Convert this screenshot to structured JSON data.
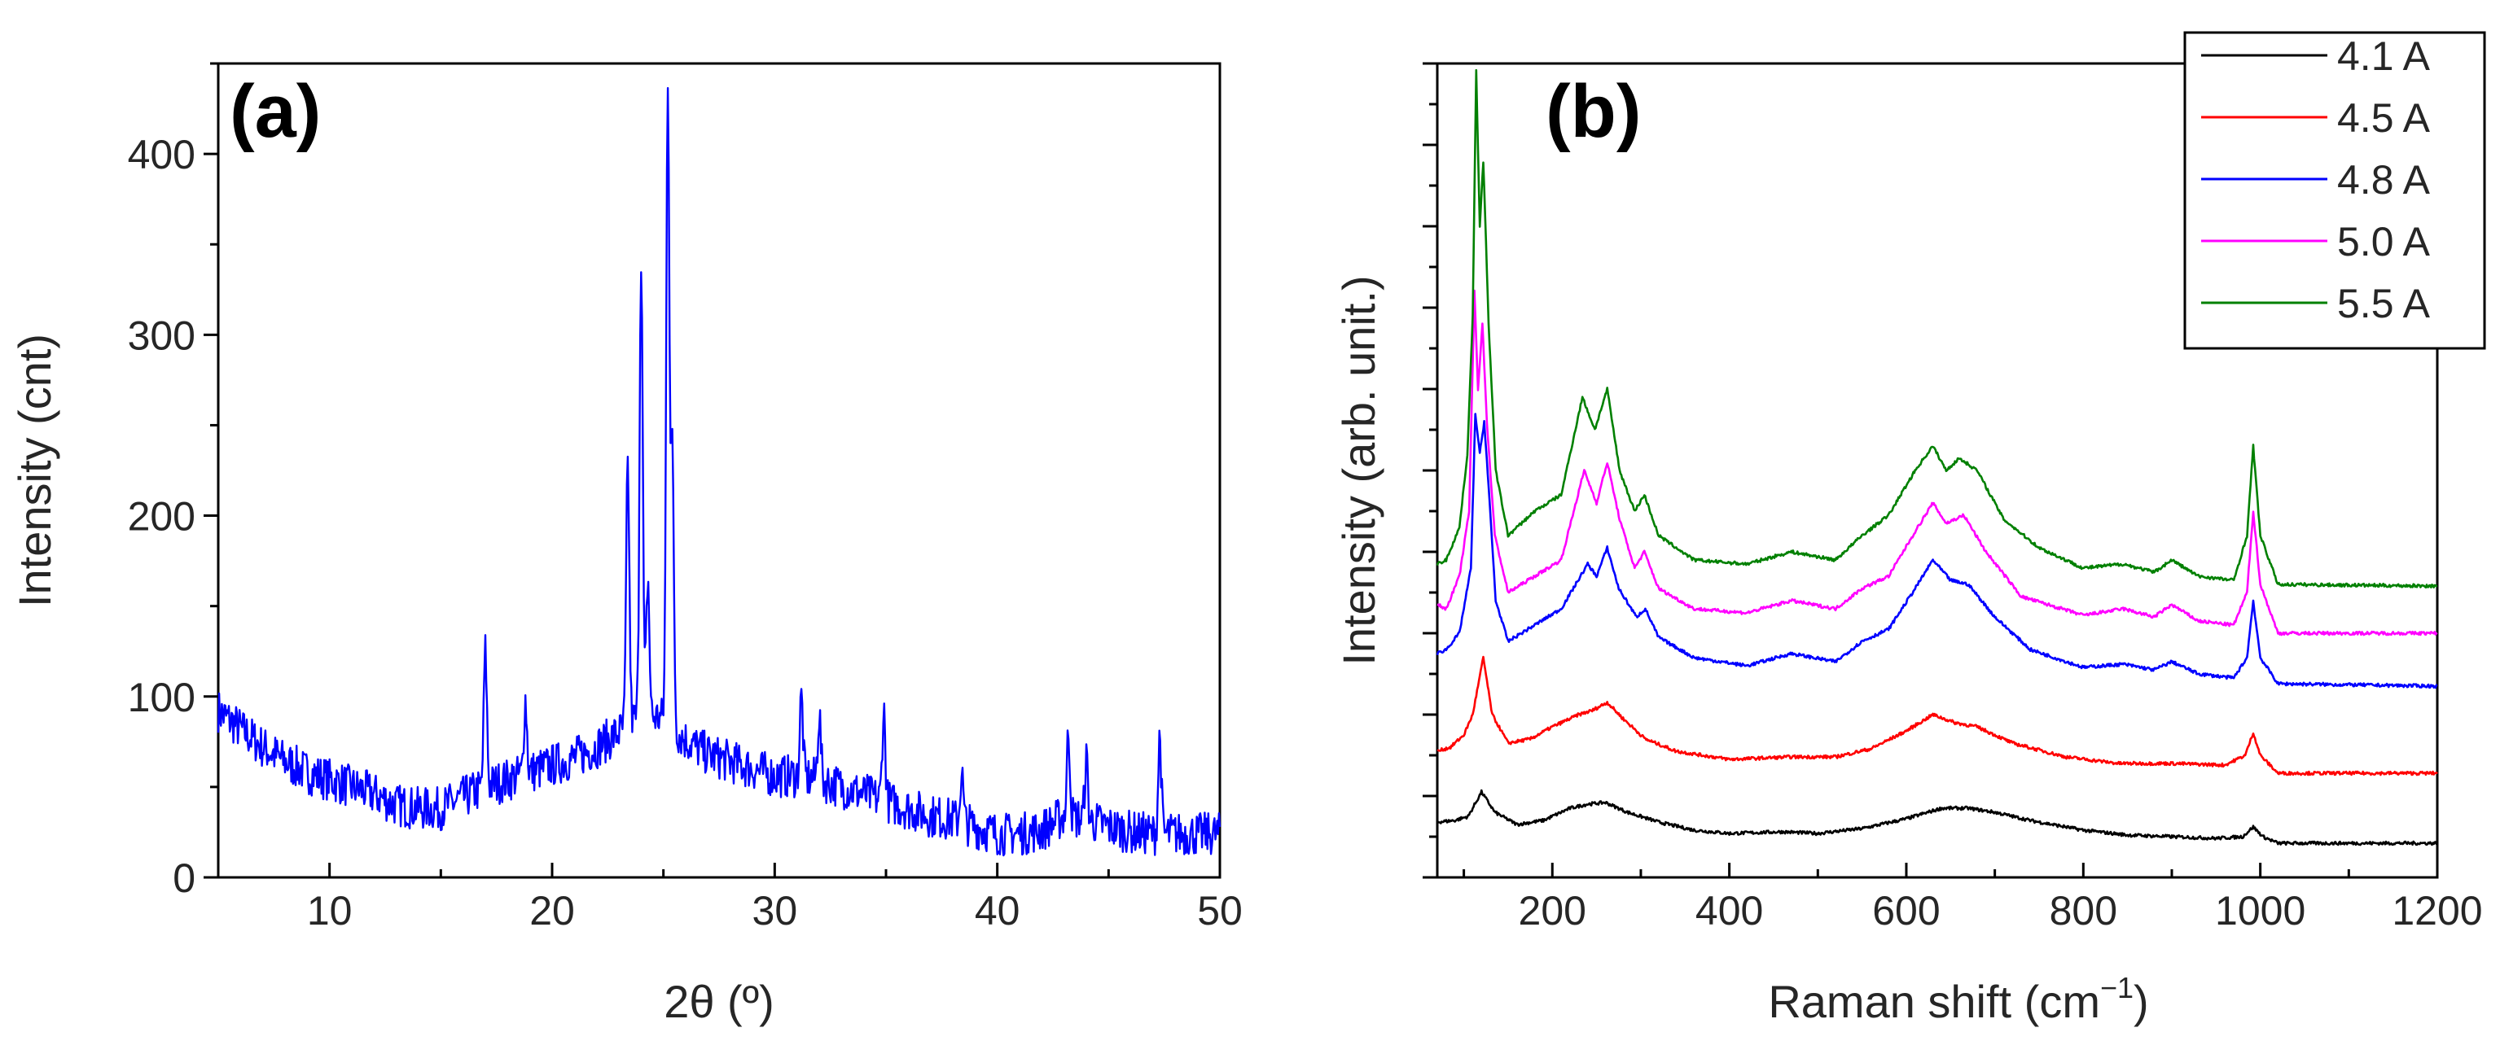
{
  "chart_data": [
    {
      "panel_label": "(a)",
      "type": "line",
      "title": "",
      "xlabel": "2θ (º)",
      "ylabel": "Intensity (cnt)",
      "xlim": [
        5,
        50
      ],
      "ylim": [
        0,
        450
      ],
      "xticks": [
        10,
        20,
        30,
        40,
        50
      ],
      "yticks": [
        0,
        100,
        200,
        300,
        400
      ],
      "grid": false,
      "series": [
        {
          "name": "XRD pattern",
          "color": "#0000ff",
          "baseline": [
            [
              5,
              92
            ],
            [
              6,
              82
            ],
            [
              7,
              72
            ],
            [
              8,
              64
            ],
            [
              9,
              58
            ],
            [
              10,
              54
            ],
            [
              11,
              50
            ],
            [
              12,
              46
            ],
            [
              13,
              40
            ],
            [
              14,
              38
            ],
            [
              15,
              38
            ],
            [
              16,
              44
            ],
            [
              17,
              50
            ],
            [
              18,
              54
            ],
            [
              19,
              58
            ],
            [
              20,
              62
            ],
            [
              21,
              66
            ],
            [
              22,
              72
            ],
            [
              23,
              80
            ],
            [
              24,
              90
            ],
            [
              25,
              88
            ],
            [
              26,
              76
            ],
            [
              27,
              68
            ],
            [
              28,
              64
            ],
            [
              29,
              60
            ],
            [
              30,
              56
            ],
            [
              31,
              56
            ],
            [
              32,
              54
            ],
            [
              33,
              50
            ],
            [
              34,
              46
            ],
            [
              35,
              42
            ],
            [
              36,
              38
            ],
            [
              37,
              34
            ],
            [
              38,
              32
            ],
            [
              39,
              28
            ],
            [
              40,
              24
            ],
            [
              41,
              24
            ],
            [
              42,
              26
            ],
            [
              43,
              34
            ],
            [
              44,
              32
            ],
            [
              45,
              28
            ],
            [
              46,
              25
            ],
            [
              47,
              24
            ],
            [
              48,
              24
            ],
            [
              49,
              24
            ],
            [
              50,
              24
            ]
          ],
          "peaks": [
            [
              17.0,
              125
            ],
            [
              18.8,
              98
            ],
            [
              23.4,
              228
            ],
            [
              24.0,
              346
            ],
            [
              24.3,
              165
            ],
            [
              25.2,
              442
            ],
            [
              25.4,
              233
            ],
            [
              31.2,
              100
            ],
            [
              32.0,
              90
            ],
            [
              34.9,
              92
            ],
            [
              38.4,
              58
            ],
            [
              43.2,
              80
            ],
            [
              44.0,
              65
            ],
            [
              47.3,
              78
            ]
          ],
          "noise_amplitude": 12
        }
      ]
    },
    {
      "panel_label": "(b)",
      "type": "line",
      "title": "",
      "xlabel": "Raman shift (cm",
      "xlabel_sup": "−1",
      "xlabel_end": ")",
      "ylabel": "Intensity (arb. unit.)",
      "xlim": [
        70,
        1200
      ],
      "ylim": [
        0,
        1
      ],
      "xticks": [
        200,
        400,
        600,
        800,
        1000,
        1200
      ],
      "yticks": [],
      "grid": false,
      "legend_position": "top-right",
      "series": [
        {
          "name": "4.1 A",
          "color": "#000000",
          "points": [
            [
              70,
              0.068
            ],
            [
              90,
              0.07
            ],
            [
              105,
              0.075
            ],
            [
              120,
              0.105
            ],
            [
              135,
              0.08
            ],
            [
              160,
              0.065
            ],
            [
              190,
              0.07
            ],
            [
              220,
              0.085
            ],
            [
              240,
              0.09
            ],
            [
              260,
              0.092
            ],
            [
              285,
              0.08
            ],
            [
              320,
              0.068
            ],
            [
              360,
              0.058
            ],
            [
              400,
              0.054
            ],
            [
              460,
              0.056
            ],
            [
              500,
              0.054
            ],
            [
              550,
              0.06
            ],
            [
              600,
              0.072
            ],
            [
              640,
              0.085
            ],
            [
              670,
              0.085
            ],
            [
              700,
              0.08
            ],
            [
              740,
              0.07
            ],
            [
              800,
              0.058
            ],
            [
              850,
              0.052
            ],
            [
              900,
              0.05
            ],
            [
              950,
              0.048
            ],
            [
              980,
              0.05
            ],
            [
              992,
              0.062
            ],
            [
              1003,
              0.05
            ],
            [
              1020,
              0.042
            ],
            [
              1100,
              0.042
            ],
            [
              1200,
              0.042
            ]
          ]
        },
        {
          "name": "4.5 A",
          "color": "#ff0000",
          "points": [
            [
              70,
              0.155
            ],
            [
              85,
              0.16
            ],
            [
              100,
              0.175
            ],
            [
              110,
              0.2
            ],
            [
              122,
              0.27
            ],
            [
              132,
              0.2
            ],
            [
              150,
              0.165
            ],
            [
              175,
              0.17
            ],
            [
              200,
              0.185
            ],
            [
              230,
              0.2
            ],
            [
              245,
              0.205
            ],
            [
              262,
              0.215
            ],
            [
              280,
              0.195
            ],
            [
              305,
              0.17
            ],
            [
              340,
              0.155
            ],
            [
              400,
              0.145
            ],
            [
              470,
              0.148
            ],
            [
              520,
              0.148
            ],
            [
              560,
              0.158
            ],
            [
              600,
              0.18
            ],
            [
              630,
              0.2
            ],
            [
              655,
              0.19
            ],
            [
              680,
              0.185
            ],
            [
              720,
              0.165
            ],
            [
              780,
              0.148
            ],
            [
              840,
              0.14
            ],
            [
              900,
              0.14
            ],
            [
              960,
              0.138
            ],
            [
              983,
              0.15
            ],
            [
              992,
              0.178
            ],
            [
              1000,
              0.15
            ],
            [
              1020,
              0.128
            ],
            [
              1200,
              0.128
            ]
          ]
        },
        {
          "name": "4.8 A",
          "color": "#0000ff",
          "points": [
            [
              70,
              0.275
            ],
            [
              80,
              0.28
            ],
            [
              95,
              0.3
            ],
            [
              108,
              0.38
            ],
            [
              113,
              0.57
            ],
            [
              118,
              0.52
            ],
            [
              123,
              0.56
            ],
            [
              128,
              0.48
            ],
            [
              136,
              0.34
            ],
            [
              150,
              0.29
            ],
            [
              180,
              0.31
            ],
            [
              210,
              0.33
            ],
            [
              240,
              0.385
            ],
            [
              250,
              0.37
            ],
            [
              262,
              0.405
            ],
            [
              275,
              0.355
            ],
            [
              295,
              0.32
            ],
            [
              305,
              0.33
            ],
            [
              320,
              0.295
            ],
            [
              360,
              0.27
            ],
            [
              420,
              0.26
            ],
            [
              470,
              0.275
            ],
            [
              520,
              0.265
            ],
            [
              550,
              0.29
            ],
            [
              580,
              0.305
            ],
            [
              610,
              0.355
            ],
            [
              630,
              0.39
            ],
            [
              650,
              0.365
            ],
            [
              670,
              0.36
            ],
            [
              700,
              0.32
            ],
            [
              740,
              0.28
            ],
            [
              800,
              0.258
            ],
            [
              845,
              0.262
            ],
            [
              880,
              0.255
            ],
            [
              900,
              0.265
            ],
            [
              930,
              0.25
            ],
            [
              970,
              0.245
            ],
            [
              985,
              0.27
            ],
            [
              992,
              0.34
            ],
            [
              1000,
              0.27
            ],
            [
              1020,
              0.238
            ],
            [
              1200,
              0.235
            ]
          ]
        },
        {
          "name": "5.0 A",
          "color": "#ff00ff",
          "points": [
            [
              70,
              0.335
            ],
            [
              80,
              0.33
            ],
            [
              95,
              0.37
            ],
            [
              106,
              0.45
            ],
            [
              112,
              0.72
            ],
            [
              116,
              0.6
            ],
            [
              121,
              0.68
            ],
            [
              126,
              0.56
            ],
            [
              135,
              0.42
            ],
            [
              150,
              0.35
            ],
            [
              180,
              0.37
            ],
            [
              210,
              0.39
            ],
            [
              236,
              0.5
            ],
            [
              250,
              0.46
            ],
            [
              262,
              0.51
            ],
            [
              276,
              0.44
            ],
            [
              293,
              0.38
            ],
            [
              304,
              0.4
            ],
            [
              320,
              0.355
            ],
            [
              360,
              0.33
            ],
            [
              420,
              0.325
            ],
            [
              470,
              0.34
            ],
            [
              520,
              0.33
            ],
            [
              550,
              0.355
            ],
            [
              580,
              0.37
            ],
            [
              610,
              0.425
            ],
            [
              630,
              0.46
            ],
            [
              645,
              0.435
            ],
            [
              665,
              0.445
            ],
            [
              690,
              0.4
            ],
            [
              730,
              0.345
            ],
            [
              800,
              0.322
            ],
            [
              845,
              0.33
            ],
            [
              880,
              0.32
            ],
            [
              900,
              0.335
            ],
            [
              930,
              0.315
            ],
            [
              970,
              0.31
            ],
            [
              985,
              0.35
            ],
            [
              992,
              0.45
            ],
            [
              1000,
              0.36
            ],
            [
              1020,
              0.3
            ],
            [
              1200,
              0.3
            ]
          ]
        },
        {
          "name": "5.5 A",
          "color": "#008000",
          "points": [
            [
              70,
              0.385
            ],
            [
              80,
              0.39
            ],
            [
              95,
              0.43
            ],
            [
              104,
              0.52
            ],
            [
              110,
              0.69
            ],
            [
              114,
              0.99
            ],
            [
              118,
              0.8
            ],
            [
              122,
              0.88
            ],
            [
              128,
              0.68
            ],
            [
              136,
              0.5
            ],
            [
              150,
              0.42
            ],
            [
              180,
              0.45
            ],
            [
              210,
              0.47
            ],
            [
              234,
              0.59
            ],
            [
              248,
              0.55
            ],
            [
              262,
              0.6
            ],
            [
              276,
              0.5
            ],
            [
              293,
              0.45
            ],
            [
              304,
              0.47
            ],
            [
              320,
              0.42
            ],
            [
              360,
              0.39
            ],
            [
              420,
              0.385
            ],
            [
              470,
              0.4
            ],
            [
              520,
              0.39
            ],
            [
              550,
              0.42
            ],
            [
              580,
              0.445
            ],
            [
              610,
              0.5
            ],
            [
              630,
              0.53
            ],
            [
              645,
              0.5
            ],
            [
              660,
              0.515
            ],
            [
              680,
              0.5
            ],
            [
              710,
              0.44
            ],
            [
              750,
              0.405
            ],
            [
              800,
              0.38
            ],
            [
              845,
              0.385
            ],
            [
              880,
              0.375
            ],
            [
              900,
              0.39
            ],
            [
              930,
              0.37
            ],
            [
              970,
              0.365
            ],
            [
              985,
              0.42
            ],
            [
              992,
              0.53
            ],
            [
              1000,
              0.42
            ],
            [
              1020,
              0.36
            ],
            [
              1200,
              0.358
            ]
          ]
        }
      ]
    }
  ]
}
